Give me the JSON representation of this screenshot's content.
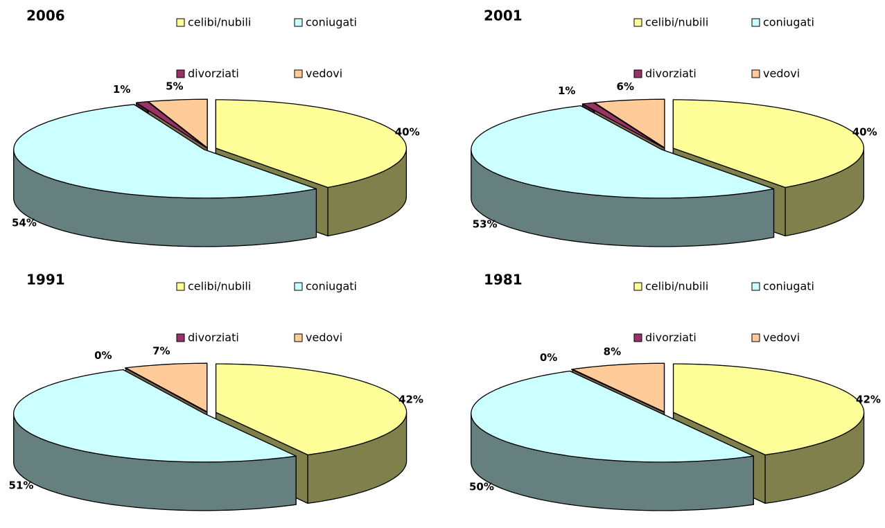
{
  "chart_data": [
    {
      "type": "pie",
      "title": "2006",
      "categories": [
        "celibi/nubili",
        "coniugati",
        "divorziati",
        "vedovi"
      ],
      "colors": [
        "#FFFF99",
        "#CCFFFF",
        "#993366",
        "#FFCC99"
      ],
      "values": [
        40,
        54,
        1,
        5
      ],
      "value_labels": [
        "40%",
        "54%",
        "1%",
        "5%"
      ]
    },
    {
      "type": "pie",
      "title": "2001",
      "categories": [
        "celibi/nubili",
        "coniugati",
        "divorziati",
        "vedovi"
      ],
      "colors": [
        "#FFFF99",
        "#CCFFFF",
        "#993366",
        "#FFCC99"
      ],
      "values": [
        40,
        53,
        1,
        6
      ],
      "value_labels": [
        "40%",
        "53%",
        "1%",
        "6%"
      ]
    },
    {
      "type": "pie",
      "title": "1991",
      "categories": [
        "celibi/nubili",
        "coniugati",
        "divorziati",
        "vedovi"
      ],
      "colors": [
        "#FFFF99",
        "#CCFFFF",
        "#993366",
        "#FFCC99"
      ],
      "values": [
        42,
        51,
        0,
        7
      ],
      "value_labels": [
        "42%",
        "51%",
        "0%",
        "7%"
      ]
    },
    {
      "type": "pie",
      "title": "1981",
      "categories": [
        "celibi/nubili",
        "coniugati",
        "divorziati",
        "vedovi"
      ],
      "colors": [
        "#FFFF99",
        "#CCFFFF",
        "#993366",
        "#FFCC99"
      ],
      "values": [
        42,
        50,
        0,
        8
      ],
      "value_labels": [
        "42%",
        "50%",
        "0%",
        "8%"
      ]
    }
  ]
}
